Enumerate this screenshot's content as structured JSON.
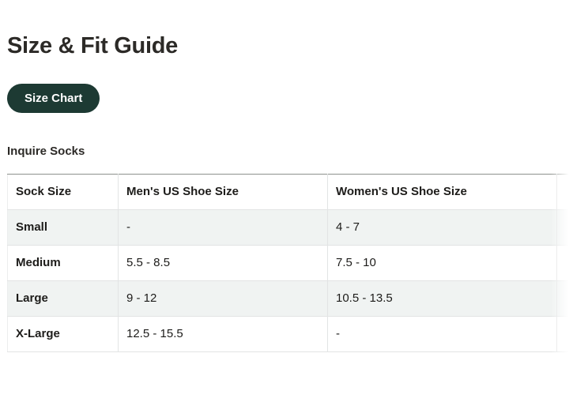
{
  "page": {
    "title": "Size & Fit Guide"
  },
  "toolbar": {
    "size_chart_label": "Size Chart",
    "size_chart_bg_color": "#1d3a33",
    "size_chart_text_color": "#ffffff"
  },
  "section": {
    "subtitle": "Inquire Socks"
  },
  "table": {
    "columns": [
      "Sock Size",
      "Men's US Shoe Size",
      "Women's US Shoe Size"
    ],
    "rows": [
      [
        "Small",
        "-",
        "4 - 7"
      ],
      [
        "Medium",
        "5.5 - 8.5",
        "7.5 - 10"
      ],
      [
        "Large",
        "9 - 12",
        "10.5 - 13.5"
      ],
      [
        "X-Large",
        "12.5 - 15.5",
        "-"
      ]
    ],
    "stripe_color": "#f0f3f2"
  }
}
